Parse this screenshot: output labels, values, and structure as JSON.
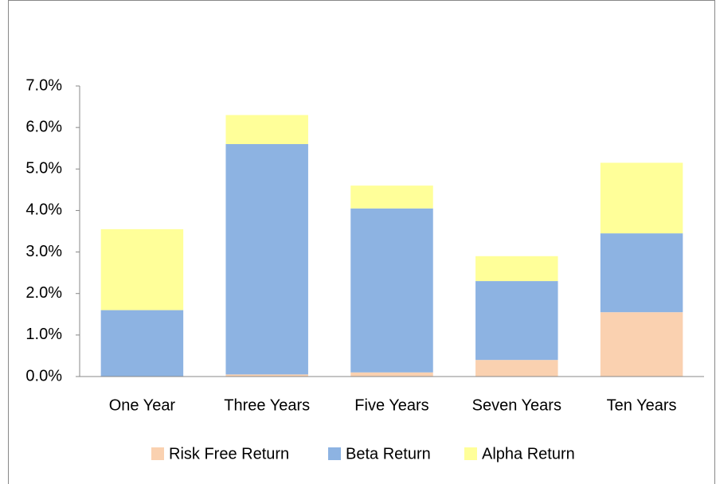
{
  "chart_data": {
    "type": "bar",
    "stacked": true,
    "categories": [
      "One Year",
      "Three Years",
      "Five Years",
      "Seven Years",
      "Ten Years"
    ],
    "series": [
      {
        "name": "Risk Free Return",
        "color": "#fad1b0",
        "values": [
          0,
          0.05,
          0.1,
          0.4,
          1.55
        ]
      },
      {
        "name": "Beta Return",
        "color": "#8db3e2",
        "values": [
          1.6,
          5.55,
          3.95,
          1.9,
          1.9
        ]
      },
      {
        "name": "Alpha Return",
        "color": "#ffff99",
        "values": [
          1.95,
          0.7,
          0.55,
          0.6,
          1.7
        ]
      }
    ],
    "ylim": [
      0,
      7
    ],
    "yticks": [
      {
        "value": 0,
        "label": "0.0%"
      },
      {
        "value": 1,
        "label": "1.0%"
      },
      {
        "value": 2,
        "label": "2.0%"
      },
      {
        "value": 3,
        "label": "3.0%"
      },
      {
        "value": 4,
        "label": "4.0%"
      },
      {
        "value": 5,
        "label": "5.0%"
      },
      {
        "value": 6,
        "label": "6.0%"
      },
      {
        "value": 7,
        "label": "7.0%"
      }
    ],
    "grid": false,
    "legend": "bottom"
  }
}
